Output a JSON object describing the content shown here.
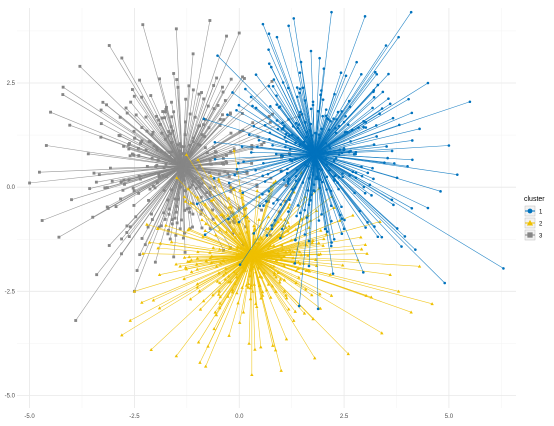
{
  "chart_data": {
    "type": "scatter",
    "title": "",
    "xlabel": "",
    "ylabel": "",
    "xlim": [
      -5.3,
      6.6
    ],
    "ylim": [
      -5.3,
      4.3
    ],
    "x_ticks": [
      -5.0,
      -2.5,
      0.0,
      2.5,
      5.0
    ],
    "y_ticks": [
      -5.0,
      -2.5,
      0.0,
      2.5
    ],
    "x_tick_labels": [
      "-5.0",
      "-2.5",
      "0.0",
      "2.5",
      "5.0"
    ],
    "y_tick_labels": [
      "-5.0",
      "-2.5",
      "0.0",
      "2.5"
    ],
    "grid": true,
    "legend": {
      "title": "cluster",
      "position": "right",
      "entries": [
        {
          "label": "1",
          "color": "#0072BD",
          "shape": "circle"
        },
        {
          "label": "2",
          "color": "#EFC000",
          "shape": "triangle"
        },
        {
          "label": "3",
          "color": "#868686",
          "shape": "square"
        }
      ]
    },
    "series": [
      {
        "name": "1",
        "color": "#0072BD",
        "centroid": [
          1.8,
          0.8
        ],
        "points": [
          [
            6.3,
            -1.95
          ],
          [
            5.5,
            2.05
          ],
          [
            4.9,
            -2.3
          ],
          [
            4.1,
            4.2
          ],
          [
            3.5,
            3.4
          ],
          [
            5.2,
            0.3
          ],
          [
            5.0,
            1.0
          ],
          [
            4.5,
            2.5
          ],
          [
            4.2,
            -1.5
          ],
          [
            3.8,
            3.6
          ],
          [
            3.0,
            4.1
          ],
          [
            2.2,
            4.2
          ],
          [
            1.3,
            4.05
          ],
          [
            0.7,
            3.3
          ],
          [
            0.4,
            2.7
          ],
          [
            0.9,
            1.6
          ],
          [
            1.2,
            -0.3
          ],
          [
            2.5,
            -1.0
          ],
          [
            3.4,
            -1.2
          ],
          [
            4.5,
            -0.5
          ],
          [
            2.8,
            3.0
          ],
          [
            0.9,
            3.6
          ],
          [
            2.0,
            2.1
          ],
          [
            3.6,
            2.0
          ],
          [
            4.3,
            1.4
          ],
          [
            3.2,
            0.2
          ],
          [
            1.6,
            1.2
          ],
          [
            2.6,
            1.5
          ],
          [
            1.9,
            -0.8
          ],
          [
            4.8,
            -0.1
          ]
        ],
        "spokes": 320,
        "x_spread": 1.1,
        "y_spread": 1.1
      },
      {
        "name": "2",
        "color": "#EFC000",
        "centroid": [
          0.3,
          -1.65
        ],
        "points": [
          [
            -2.8,
            -3.55
          ],
          [
            -2.1,
            -3.9
          ],
          [
            -1.5,
            -4.05
          ],
          [
            -0.8,
            -4.3
          ],
          [
            0.3,
            -4.5
          ],
          [
            1.0,
            -4.4
          ],
          [
            1.8,
            -4.1
          ],
          [
            2.6,
            -4.0
          ],
          [
            3.4,
            -3.5
          ],
          [
            4.1,
            -3.0
          ],
          [
            4.6,
            -2.8
          ],
          [
            3.6,
            -2.1
          ],
          [
            2.9,
            -1.2
          ],
          [
            -0.2,
            0.0
          ],
          [
            -1.2,
            -1.0
          ],
          [
            -2.5,
            -2.5
          ],
          [
            -1.9,
            -2.9
          ],
          [
            -0.6,
            -3.4
          ],
          [
            1.3,
            -3.2
          ],
          [
            2.2,
            -2.6
          ],
          [
            3.8,
            -2.5
          ],
          [
            4.3,
            -1.9
          ],
          [
            2.4,
            -0.8
          ],
          [
            -1.9,
            -2.1
          ],
          [
            -2.6,
            -3.2
          ],
          [
            0.8,
            -3.8
          ],
          [
            1.6,
            -2.0
          ],
          [
            -1.0,
            -2.4
          ],
          [
            0.1,
            -3.0
          ],
          [
            2.0,
            -1.4
          ]
        ],
        "spokes": 320,
        "x_spread": 1.05,
        "y_spread": 0.85
      },
      {
        "name": "3",
        "color": "#868686",
        "centroid": [
          -1.35,
          0.5
        ],
        "points": [
          [
            -5.0,
            0.1
          ],
          [
            -4.6,
            1.0
          ],
          [
            -4.7,
            -0.8
          ],
          [
            -4.2,
            2.4
          ],
          [
            -3.9,
            -3.2
          ],
          [
            -3.1,
            3.4
          ],
          [
            -2.3,
            3.9
          ],
          [
            -1.5,
            3.8
          ],
          [
            -0.7,
            4.0
          ],
          [
            0.0,
            3.7
          ],
          [
            0.3,
            1.0
          ],
          [
            0.0,
            -0.5
          ],
          [
            -1.3,
            -1.1
          ],
          [
            -2.5,
            -2.5
          ],
          [
            -3.4,
            -2.1
          ],
          [
            -4.3,
            -1.2
          ],
          [
            -4.5,
            1.8
          ],
          [
            -3.8,
            2.9
          ],
          [
            -2.8,
            3.1
          ],
          [
            -1.1,
            3.2
          ],
          [
            -3.1,
            -1.4
          ],
          [
            -2.0,
            -1.8
          ],
          [
            -3.6,
            0.8
          ],
          [
            -2.7,
            1.9
          ],
          [
            -1.9,
            2.6
          ],
          [
            -0.4,
            2.4
          ],
          [
            -0.2,
            -0.1
          ],
          [
            -4.0,
            -0.3
          ],
          [
            -3.3,
            1.2
          ],
          [
            -1.5,
            -0.6
          ]
        ],
        "spokes": 320,
        "x_spread": 1.05,
        "y_spread": 1.05
      }
    ]
  }
}
